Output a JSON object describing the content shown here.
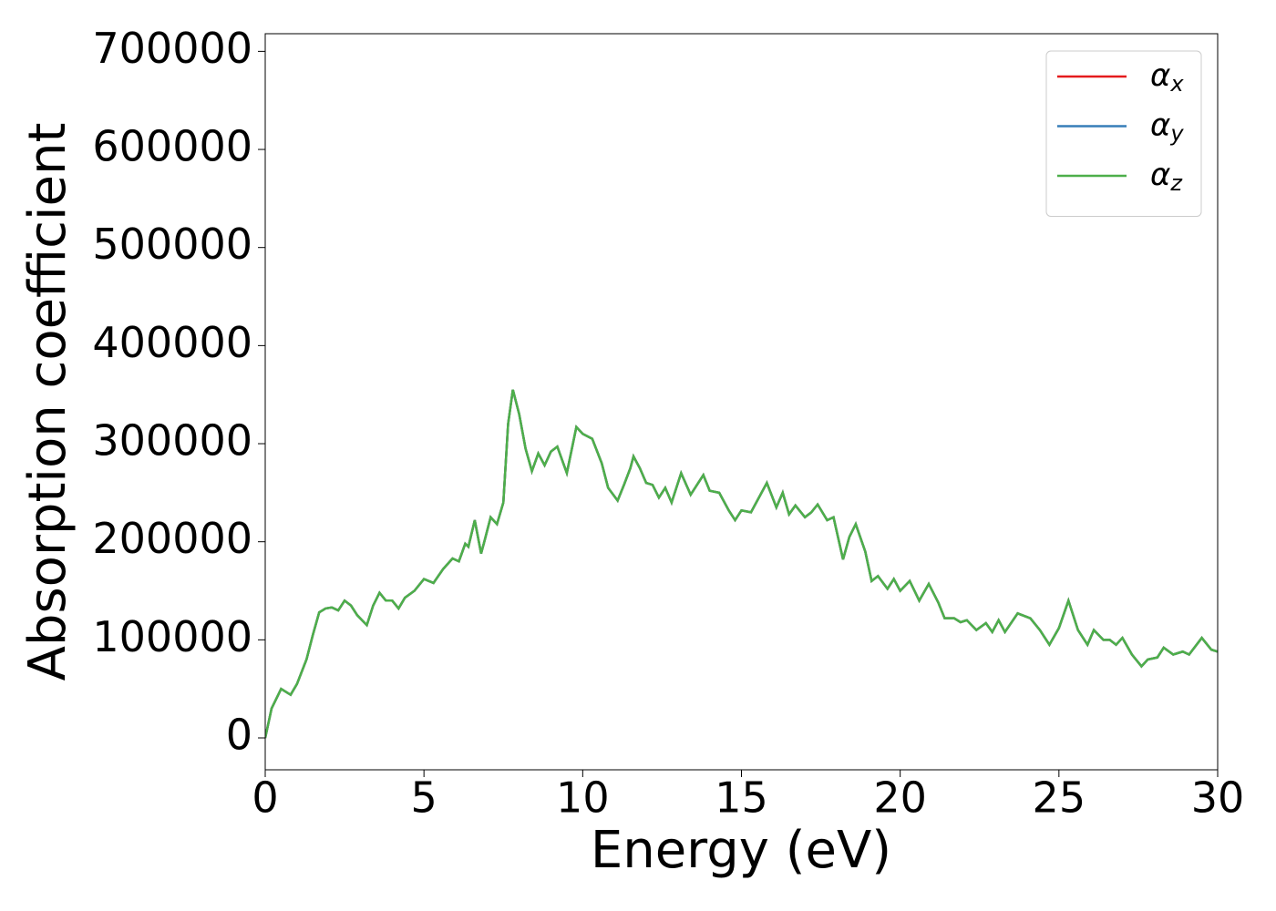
{
  "chart_data": {
    "type": "line",
    "xlabel": "Energy (eV)",
    "ylabel": "Absorption coefficient",
    "x": [
      0,
      0.2,
      0.5,
      0.8,
      1.0,
      1.3,
      1.5,
      1.7,
      1.9,
      2.1,
      2.3,
      2.5,
      2.7,
      2.9,
      3.2,
      3.4,
      3.6,
      3.8,
      4.0,
      4.2,
      4.4,
      4.7,
      5.0,
      5.3,
      5.6,
      5.9,
      6.1,
      6.3,
      6.4,
      6.6,
      6.8,
      6.9,
      7.1,
      7.3,
      7.5,
      7.65,
      7.8,
      8.0,
      8.2,
      8.4,
      8.6,
      8.8,
      9.0,
      9.2,
      9.5,
      9.8,
      10.0,
      10.3,
      10.6,
      10.8,
      11.1,
      11.3,
      11.5,
      11.6,
      11.8,
      12.0,
      12.2,
      12.4,
      12.6,
      12.8,
      13.1,
      13.4,
      13.8,
      14.0,
      14.3,
      14.6,
      14.8,
      15.0,
      15.3,
      15.6,
      15.8,
      16.1,
      16.3,
      16.5,
      16.7,
      17.0,
      17.2,
      17.4,
      17.7,
      17.9,
      18.2,
      18.4,
      18.6,
      18.9,
      19.1,
      19.3,
      19.6,
      19.8,
      20.0,
      20.3,
      20.6,
      20.9,
      21.2,
      21.4,
      21.7,
      21.9,
      22.1,
      22.4,
      22.7,
      22.9,
      23.1,
      23.3,
      23.7,
      24.1,
      24.4,
      24.7,
      25.0,
      25.3,
      25.6,
      25.9,
      26.1,
      26.4,
      26.6,
      26.8,
      27.0,
      27.3,
      27.6,
      27.8,
      28.1,
      28.3,
      28.6,
      28.9,
      29.1,
      29.5,
      29.8,
      30.0
    ],
    "series": [
      {
        "name": "αx",
        "color": "#e41a1c",
        "values": [
          0,
          30000,
          50000,
          44000,
          55000,
          80000,
          105000,
          128000,
          132000,
          133000,
          130000,
          140000,
          135000,
          125000,
          115000,
          135000,
          148000,
          140000,
          140000,
          132000,
          143000,
          150000,
          162000,
          158000,
          172000,
          183000,
          180000,
          198000,
          195000,
          222000,
          188000,
          200000,
          225000,
          218000,
          240000,
          320000,
          355000,
          330000,
          295000,
          272000,
          290000,
          278000,
          292000,
          297000,
          270000,
          317000,
          310000,
          305000,
          280000,
          255000,
          242000,
          258000,
          275000,
          287000,
          275000,
          260000,
          258000,
          245000,
          255000,
          240000,
          270000,
          248000,
          268000,
          252000,
          250000,
          232000,
          222000,
          232000,
          230000,
          248000,
          260000,
          235000,
          250000,
          228000,
          237000,
          225000,
          230000,
          238000,
          222000,
          225000,
          182000,
          205000,
          218000,
          190000,
          160000,
          165000,
          152000,
          162000,
          150000,
          160000,
          140000,
          157000,
          138000,
          122000,
          122000,
          118000,
          120000,
          110000,
          117000,
          108000,
          120000,
          108000,
          127000,
          122000,
          110000,
          95000,
          112000,
          140000,
          110000,
          95000,
          110000,
          100000,
          100000,
          95000,
          102000,
          85000,
          73000,
          80000,
          82000,
          92000,
          85000,
          88000,
          85000,
          102000,
          90000,
          88000
        ]
      },
      {
        "name": "αy",
        "color": "#377eb8",
        "values": [
          0,
          30000,
          50000,
          44000,
          55000,
          80000,
          105000,
          128000,
          132000,
          133000,
          130000,
          140000,
          135000,
          125000,
          115000,
          135000,
          148000,
          140000,
          140000,
          132000,
          143000,
          150000,
          162000,
          158000,
          172000,
          183000,
          180000,
          198000,
          195000,
          222000,
          188000,
          200000,
          225000,
          218000,
          240000,
          320000,
          355000,
          330000,
          295000,
          272000,
          290000,
          278000,
          292000,
          297000,
          270000,
          317000,
          310000,
          305000,
          280000,
          255000,
          242000,
          258000,
          275000,
          287000,
          275000,
          260000,
          258000,
          245000,
          255000,
          240000,
          270000,
          248000,
          268000,
          252000,
          250000,
          232000,
          222000,
          232000,
          230000,
          248000,
          260000,
          235000,
          250000,
          228000,
          237000,
          225000,
          230000,
          238000,
          222000,
          225000,
          182000,
          205000,
          218000,
          190000,
          160000,
          165000,
          152000,
          162000,
          150000,
          160000,
          140000,
          157000,
          138000,
          122000,
          122000,
          118000,
          120000,
          110000,
          117000,
          108000,
          120000,
          108000,
          127000,
          122000,
          110000,
          95000,
          112000,
          140000,
          110000,
          95000,
          110000,
          100000,
          100000,
          95000,
          102000,
          85000,
          73000,
          80000,
          82000,
          92000,
          85000,
          88000,
          85000,
          102000,
          90000,
          88000
        ]
      },
      {
        "name": "αz",
        "color": "#4daf4a",
        "values": [
          0,
          30000,
          50000,
          44000,
          55000,
          80000,
          105000,
          128000,
          132000,
          133000,
          130000,
          140000,
          135000,
          125000,
          115000,
          135000,
          148000,
          140000,
          140000,
          132000,
          143000,
          150000,
          162000,
          158000,
          172000,
          183000,
          180000,
          198000,
          195000,
          222000,
          188000,
          200000,
          225000,
          218000,
          240000,
          320000,
          355000,
          330000,
          295000,
          272000,
          290000,
          278000,
          292000,
          297000,
          270000,
          317000,
          310000,
          305000,
          280000,
          255000,
          242000,
          258000,
          275000,
          287000,
          275000,
          260000,
          258000,
          245000,
          255000,
          240000,
          270000,
          248000,
          268000,
          252000,
          250000,
          232000,
          222000,
          232000,
          230000,
          248000,
          260000,
          235000,
          250000,
          228000,
          237000,
          225000,
          230000,
          238000,
          222000,
          225000,
          182000,
          205000,
          218000,
          190000,
          160000,
          165000,
          152000,
          162000,
          150000,
          160000,
          140000,
          157000,
          138000,
          122000,
          122000,
          118000,
          120000,
          110000,
          117000,
          108000,
          120000,
          108000,
          127000,
          122000,
          110000,
          95000,
          112000,
          140000,
          110000,
          95000,
          110000,
          100000,
          100000,
          95000,
          102000,
          85000,
          73000,
          80000,
          82000,
          92000,
          85000,
          88000,
          85000,
          102000,
          90000,
          88000
        ]
      }
    ],
    "xlim": [
      0,
      30
    ],
    "xticks": [
      0,
      5,
      10,
      15,
      20,
      25,
      30
    ],
    "ylim": [
      -32500,
      718000
    ],
    "yticks": [
      0,
      100000,
      200000,
      300000,
      400000,
      500000,
      600000,
      700000
    ],
    "legend": "upper right",
    "grid": false
  }
}
